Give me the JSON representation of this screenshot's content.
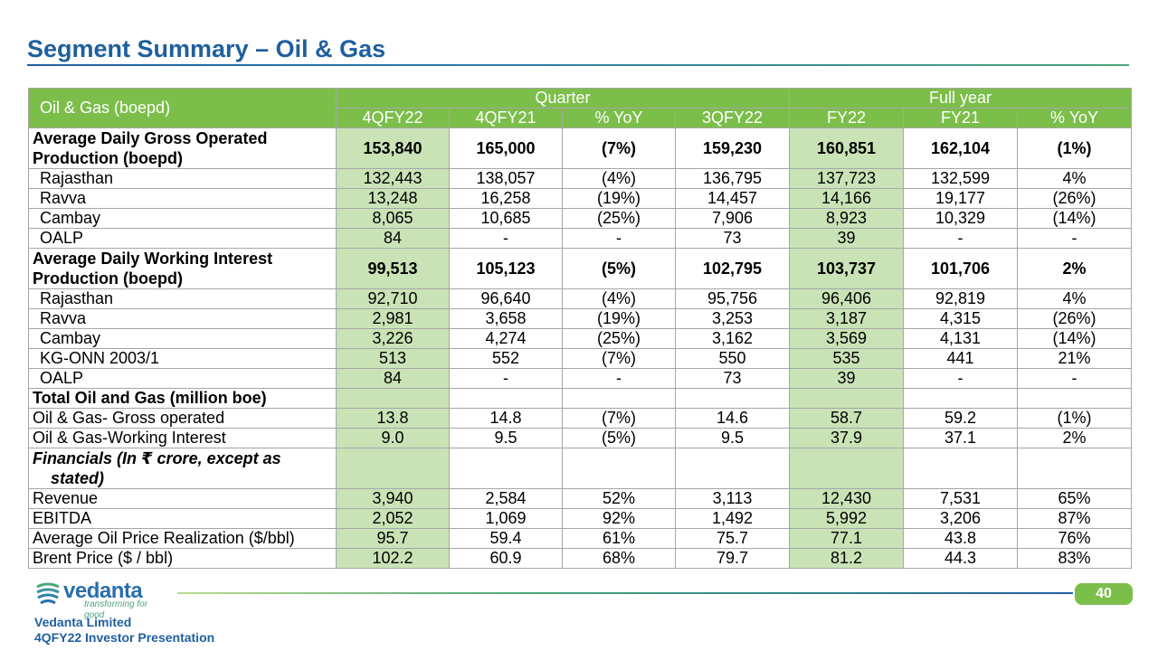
{
  "title": "Segment Summary – Oil & Gas",
  "table": {
    "corner_label": "Oil & Gas (boepd)",
    "group_quarter": "Quarter",
    "group_fullyear": "Full year",
    "columns": [
      "4QFY22",
      "4QFY21",
      "% YoY",
      "3QFY22",
      "FY22",
      "FY21",
      "% YoY"
    ],
    "rows": [
      {
        "label": "Average Daily Gross Operated Production (boepd)",
        "values": [
          "153,840",
          "165,000",
          "(7%)",
          "159,230",
          "160,851",
          "162,104",
          "(1%)"
        ]
      },
      {
        "label": "Rajasthan",
        "values": [
          "132,443",
          "138,057",
          "(4%)",
          "136,795",
          "137,723",
          "132,599",
          "4%"
        ]
      },
      {
        "label": "Ravva",
        "values": [
          "13,248",
          "16,258",
          "(19%)",
          "14,457",
          "14,166",
          "19,177",
          "(26%)"
        ]
      },
      {
        "label": "Cambay",
        "values": [
          "8,065",
          "10,685",
          "(25%)",
          "7,906",
          "8,923",
          "10,329",
          "(14%)"
        ]
      },
      {
        "label": "OALP",
        "values": [
          "84",
          "-",
          "-",
          "73",
          "39",
          "-",
          "-"
        ]
      },
      {
        "label": "Average Daily Working Interest Production (boepd)",
        "values": [
          "99,513",
          "105,123",
          "(5%)",
          "102,795",
          "103,737",
          "101,706",
          "2%"
        ]
      },
      {
        "label": "Rajasthan",
        "values": [
          "92,710",
          "96,640",
          "(4%)",
          "95,756",
          "96,406",
          "92,819",
          "4%"
        ]
      },
      {
        "label": "Ravva",
        "values": [
          "2,981",
          "3,658",
          "(19%)",
          "3,253",
          "3,187",
          "4,315",
          "(26%)"
        ]
      },
      {
        "label": "Cambay",
        "values": [
          "3,226",
          "4,274",
          "(25%)",
          "3,162",
          "3,569",
          "4,131",
          "(14%)"
        ]
      },
      {
        "label": "KG-ONN 2003/1",
        "values": [
          "513",
          "552",
          "(7%)",
          "550",
          "535",
          "441",
          "21%"
        ]
      },
      {
        "label": "OALP",
        "values": [
          "84",
          "-",
          "-",
          "73",
          "39",
          "-",
          "-"
        ]
      },
      {
        "label": "Total Oil and Gas (million boe)",
        "values": [
          "",
          "",
          "",
          "",
          "",
          "",
          ""
        ]
      },
      {
        "label": "Oil & Gas- Gross operated",
        "values": [
          "13.8",
          "14.8",
          "(7%)",
          "14.6",
          "58.7",
          "59.2",
          "(1%)"
        ]
      },
      {
        "label": "Oil & Gas-Working Interest",
        "values": [
          "9.0",
          "9.5",
          "(5%)",
          "9.5",
          "37.9",
          "37.1",
          "2%"
        ]
      },
      {
        "label": "Financials (In ₹ crore, except as stated)",
        "values": [
          "",
          "",
          "",
          "",
          "",
          "",
          ""
        ]
      },
      {
        "label": "Revenue",
        "values": [
          "3,940",
          "2,584",
          "52%",
          "3,113",
          "12,430",
          "7,531",
          "65%"
        ]
      },
      {
        "label": "EBITDA",
        "values": [
          "2,052",
          "1,069",
          "92%",
          "1,492",
          "5,992",
          "3,206",
          "87%"
        ]
      },
      {
        "label": "Average Oil Price Realization  ($/bbl)",
        "values": [
          "95.7",
          "59.4",
          "61%",
          "75.7",
          "77.1",
          "43.8",
          "76%"
        ]
      },
      {
        "label": "Brent Price ($ / bbl)",
        "values": [
          "102.2",
          "60.9",
          "68%",
          "79.7",
          "81.2",
          "44.3",
          "83%"
        ]
      }
    ]
  },
  "footer": {
    "logo_word": "vedanta",
    "logo_tagline": "transforming for good",
    "company": "Vedanta Limited",
    "presentation": "4QFY22 Investor Presentation",
    "page_number": "40"
  },
  "colors": {
    "title": "#1f5f9e",
    "header_green": "#7cbe4a",
    "light_green": "#c9e3b6"
  }
}
